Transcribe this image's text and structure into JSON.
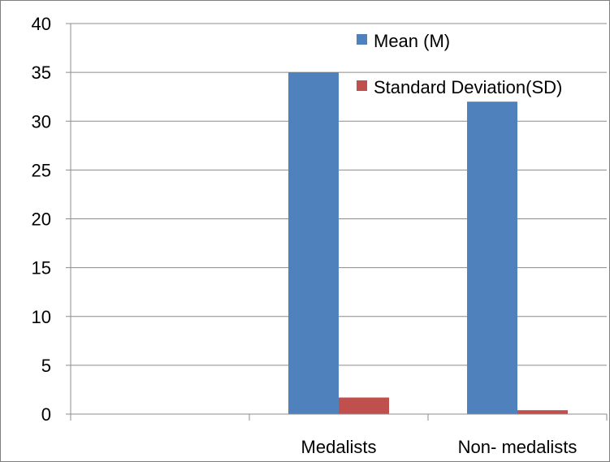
{
  "chart_data": {
    "type": "bar",
    "categories": [
      "",
      "Medalists",
      "Non- medalists"
    ],
    "series": [
      {
        "name": "Mean (M)",
        "values": [
          0,
          35,
          32
        ],
        "color": "#4f81bd"
      },
      {
        "name": "Standard Deviation(SD)",
        "values": [
          0,
          1.7,
          0.4
        ],
        "color": "#c0504d"
      }
    ],
    "ylim": [
      0,
      40
    ],
    "yticks": [
      0,
      5,
      10,
      15,
      20,
      25,
      30,
      35,
      40
    ],
    "grid": true,
    "legend_position": "top-right"
  }
}
